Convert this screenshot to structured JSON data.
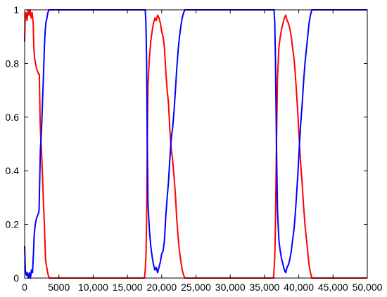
{
  "chart_data": {
    "type": "line",
    "title": "",
    "xlabel": "",
    "ylabel": "",
    "xlim": [
      0,
      50000
    ],
    "ylim": [
      0,
      1
    ],
    "grid": false,
    "x_ticks": [
      0,
      5000,
      10000,
      15000,
      20000,
      25000,
      30000,
      35000,
      40000,
      45000,
      50000
    ],
    "x_tick_labels": [
      "0",
      "5000",
      "10,000",
      "15,000",
      "20,000",
      "25,000",
      "30,000",
      "35,000",
      "40,000",
      "45,000",
      "50,000"
    ],
    "y_ticks": [
      0,
      0.2,
      0.4,
      0.6,
      0.8,
      1
    ],
    "y_tick_labels": [
      "0",
      "0.2",
      "0.4",
      "0.6",
      "0.8",
      "1"
    ],
    "series": [
      {
        "color": "#ff0000",
        "points": [
          [
            0,
            0.88
          ],
          [
            80,
            0.97
          ],
          [
            200,
            0.99
          ],
          [
            350,
            0.96
          ],
          [
            500,
            1.0
          ],
          [
            650,
            0.98
          ],
          [
            800,
            1.0
          ],
          [
            950,
            0.97
          ],
          [
            1100,
            0.99
          ],
          [
            1250,
            0.95
          ],
          [
            1350,
            0.86
          ],
          [
            1450,
            0.82
          ],
          [
            1600,
            0.8
          ],
          [
            1750,
            0.78
          ],
          [
            1900,
            0.77
          ],
          [
            2050,
            0.76
          ],
          [
            2150,
            0.76
          ],
          [
            2250,
            0.6
          ],
          [
            2350,
            0.52
          ],
          [
            2450,
            0.48
          ],
          [
            2550,
            0.42
          ],
          [
            2650,
            0.35
          ],
          [
            2750,
            0.28
          ],
          [
            2850,
            0.22
          ],
          [
            2950,
            0.15
          ],
          [
            3050,
            0.07
          ],
          [
            3150,
            0.05
          ],
          [
            3300,
            0.03
          ],
          [
            3450,
            0.01
          ],
          [
            3600,
            0.0
          ],
          [
            17500,
            0.0
          ],
          [
            17600,
            0.03
          ],
          [
            17700,
            0.08
          ],
          [
            17800,
            0.22
          ],
          [
            17900,
            0.5
          ],
          [
            18000,
            0.72
          ],
          [
            18200,
            0.82
          ],
          [
            18400,
            0.88
          ],
          [
            18600,
            0.92
          ],
          [
            18800,
            0.95
          ],
          [
            19000,
            0.97
          ],
          [
            19200,
            0.96
          ],
          [
            19400,
            0.98
          ],
          [
            19600,
            0.97
          ],
          [
            19800,
            0.95
          ],
          [
            20000,
            0.92
          ],
          [
            20200,
            0.9
          ],
          [
            20400,
            0.86
          ],
          [
            20600,
            0.77
          ],
          [
            20800,
            0.7
          ],
          [
            21000,
            0.65
          ],
          [
            21200,
            0.55
          ],
          [
            21400,
            0.48
          ],
          [
            21600,
            0.44
          ],
          [
            21800,
            0.38
          ],
          [
            22000,
            0.31
          ],
          [
            22200,
            0.22
          ],
          [
            22400,
            0.15
          ],
          [
            22600,
            0.1
          ],
          [
            22800,
            0.06
          ],
          [
            23000,
            0.03
          ],
          [
            23200,
            0.01
          ],
          [
            23400,
            0.0
          ],
          [
            36300,
            0.0
          ],
          [
            36400,
            0.03
          ],
          [
            36500,
            0.08
          ],
          [
            36600,
            0.2
          ],
          [
            36750,
            0.5
          ],
          [
            36900,
            0.75
          ],
          [
            37100,
            0.86
          ],
          [
            37300,
            0.9
          ],
          [
            37500,
            0.93
          ],
          [
            37700,
            0.95
          ],
          [
            37900,
            0.97
          ],
          [
            38100,
            0.98
          ],
          [
            38300,
            0.96
          ],
          [
            38500,
            0.95
          ],
          [
            38700,
            0.93
          ],
          [
            38900,
            0.9
          ],
          [
            39100,
            0.86
          ],
          [
            39300,
            0.82
          ],
          [
            39500,
            0.76
          ],
          [
            39700,
            0.68
          ],
          [
            39900,
            0.6
          ],
          [
            40100,
            0.5
          ],
          [
            40300,
            0.42
          ],
          [
            40500,
            0.35
          ],
          [
            40700,
            0.27
          ],
          [
            40900,
            0.2
          ],
          [
            41100,
            0.15
          ],
          [
            41300,
            0.1
          ],
          [
            41500,
            0.05
          ],
          [
            41700,
            0.02
          ],
          [
            41900,
            0.0
          ],
          [
            50000,
            0.0
          ]
        ]
      },
      {
        "color": "#0000ff",
        "points": [
          [
            0,
            0.12
          ],
          [
            100,
            0.03
          ],
          [
            250,
            0.01
          ],
          [
            400,
            0.02
          ],
          [
            550,
            0.0
          ],
          [
            700,
            0.02
          ],
          [
            850,
            0.0
          ],
          [
            1000,
            0.03
          ],
          [
            1150,
            0.02
          ],
          [
            1300,
            0.1
          ],
          [
            1400,
            0.16
          ],
          [
            1550,
            0.2
          ],
          [
            1700,
            0.22
          ],
          [
            1850,
            0.23
          ],
          [
            2000,
            0.24
          ],
          [
            2100,
            0.25
          ],
          [
            2200,
            0.36
          ],
          [
            2300,
            0.48
          ],
          [
            2400,
            0.52
          ],
          [
            2500,
            0.58
          ],
          [
            2600,
            0.65
          ],
          [
            2700,
            0.72
          ],
          [
            2800,
            0.8
          ],
          [
            2900,
            0.87
          ],
          [
            3000,
            0.92
          ],
          [
            3100,
            0.95
          ],
          [
            3250,
            0.97
          ],
          [
            3400,
            0.99
          ],
          [
            3550,
            1.0
          ],
          [
            17600,
            1.0
          ],
          [
            17700,
            0.95
          ],
          [
            17800,
            0.8
          ],
          [
            17900,
            0.5
          ],
          [
            18000,
            0.28
          ],
          [
            18200,
            0.18
          ],
          [
            18400,
            0.12
          ],
          [
            18600,
            0.08
          ],
          [
            18800,
            0.05
          ],
          [
            19000,
            0.03
          ],
          [
            19200,
            0.04
          ],
          [
            19400,
            0.02
          ],
          [
            19600,
            0.04
          ],
          [
            19800,
            0.06
          ],
          [
            20000,
            0.09
          ],
          [
            20200,
            0.1
          ],
          [
            20400,
            0.14
          ],
          [
            20600,
            0.23
          ],
          [
            20800,
            0.3
          ],
          [
            21000,
            0.36
          ],
          [
            21200,
            0.45
          ],
          [
            21400,
            0.52
          ],
          [
            21600,
            0.56
          ],
          [
            21800,
            0.62
          ],
          [
            22000,
            0.7
          ],
          [
            22200,
            0.78
          ],
          [
            22400,
            0.85
          ],
          [
            22600,
            0.9
          ],
          [
            22800,
            0.94
          ],
          [
            23000,
            0.97
          ],
          [
            23200,
            0.99
          ],
          [
            23400,
            1.0
          ],
          [
            36400,
            1.0
          ],
          [
            36500,
            0.95
          ],
          [
            36600,
            0.82
          ],
          [
            36750,
            0.5
          ],
          [
            36900,
            0.25
          ],
          [
            37100,
            0.14
          ],
          [
            37300,
            0.1
          ],
          [
            37500,
            0.07
          ],
          [
            37700,
            0.05
          ],
          [
            37900,
            0.03
          ],
          [
            38100,
            0.02
          ],
          [
            38300,
            0.04
          ],
          [
            38500,
            0.05
          ],
          [
            38700,
            0.07
          ],
          [
            38900,
            0.1
          ],
          [
            39100,
            0.14
          ],
          [
            39300,
            0.18
          ],
          [
            39500,
            0.24
          ],
          [
            39700,
            0.32
          ],
          [
            39900,
            0.4
          ],
          [
            40100,
            0.5
          ],
          [
            40300,
            0.58
          ],
          [
            40500,
            0.65
          ],
          [
            40700,
            0.73
          ],
          [
            40900,
            0.8
          ],
          [
            41100,
            0.85
          ],
          [
            41300,
            0.9
          ],
          [
            41500,
            0.95
          ],
          [
            41700,
            0.98
          ],
          [
            41900,
            1.0
          ],
          [
            50000,
            1.0
          ]
        ]
      }
    ]
  }
}
